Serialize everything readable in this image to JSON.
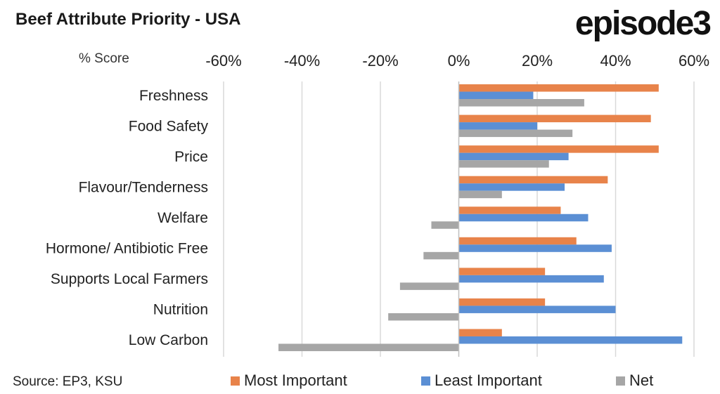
{
  "header": {
    "title": "Beef Attribute Priority - USA",
    "logo_text": "episode3"
  },
  "footer": {
    "source": "Source: EP3, KSU"
  },
  "colors": {
    "most_important": "#E8834A",
    "least_important": "#5B8FD4",
    "net": "#A6A6A6",
    "grid": "#D9D9D9"
  },
  "chart_data": {
    "type": "bar",
    "orientation": "horizontal",
    "title": "Beef Attribute Priority - USA",
    "xlabel": "% Score",
    "xlim": [
      -60,
      60
    ],
    "xticks": [
      -60,
      -40,
      -20,
      0,
      20,
      40,
      60
    ],
    "xtick_labels": [
      "-60%",
      "-40%",
      "-20%",
      "0%",
      "20%",
      "40%",
      "60%"
    ],
    "grid": true,
    "legend_position": "bottom",
    "categories": [
      "Freshness",
      "Food Safety",
      "Price",
      "Flavour/Tenderness",
      "Welfare",
      "Hormone/ Antibiotic Free",
      "Supports Local Farmers",
      "Nutrition",
      "Low Carbon"
    ],
    "series": [
      {
        "name": "Most Important",
        "values": [
          51,
          49,
          51,
          38,
          26,
          30,
          22,
          22,
          11
        ]
      },
      {
        "name": "Least Important",
        "values": [
          19,
          20,
          28,
          27,
          33,
          39,
          37,
          40,
          57
        ]
      },
      {
        "name": "Net",
        "values": [
          32,
          29,
          23,
          11,
          -7,
          -9,
          -15,
          -18,
          -46
        ]
      }
    ]
  }
}
